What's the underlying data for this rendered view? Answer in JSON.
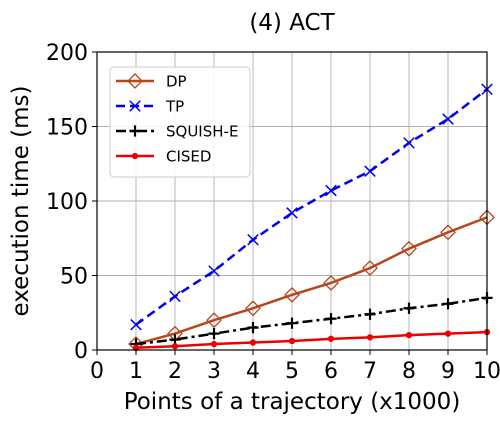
{
  "chart_data": {
    "type": "line",
    "title": "(4) ACT",
    "xlabel": "Points of a trajectory (x1000)",
    "ylabel": "execution time (ms)",
    "xlim": [
      0,
      10
    ],
    "ylim": [
      0,
      200
    ],
    "xticks": [
      0,
      1,
      2,
      3,
      4,
      5,
      6,
      7,
      8,
      9,
      10
    ],
    "yticks": [
      0,
      50,
      100,
      150,
      200
    ],
    "grid": true,
    "legend_position": "top-left",
    "x": [
      1,
      2,
      3,
      4,
      5,
      6,
      7,
      8,
      9,
      10
    ],
    "series": [
      {
        "name": "DP",
        "color": "#b5471b",
        "marker": "diamond-open",
        "line": "solid",
        "values": [
          4,
          11,
          20,
          28,
          37,
          45,
          55,
          68,
          79,
          89
        ]
      },
      {
        "name": "TP",
        "color": "#0000ee",
        "marker": "x",
        "line": "dashed",
        "values": [
          17,
          36,
          53,
          74,
          92,
          107,
          120,
          139,
          155,
          175
        ]
      },
      {
        "name": "SQUISH-E",
        "color": "#000000",
        "marker": "plus",
        "line": "dashdot",
        "values": [
          4,
          7,
          11,
          15,
          18,
          21,
          24,
          28,
          31,
          35
        ]
      },
      {
        "name": "CISED",
        "color": "#ee0000",
        "marker": "dot",
        "line": "solid",
        "values": [
          1.5,
          2.5,
          4,
          5,
          6,
          7.5,
          8.5,
          10,
          11,
          12
        ]
      }
    ]
  }
}
